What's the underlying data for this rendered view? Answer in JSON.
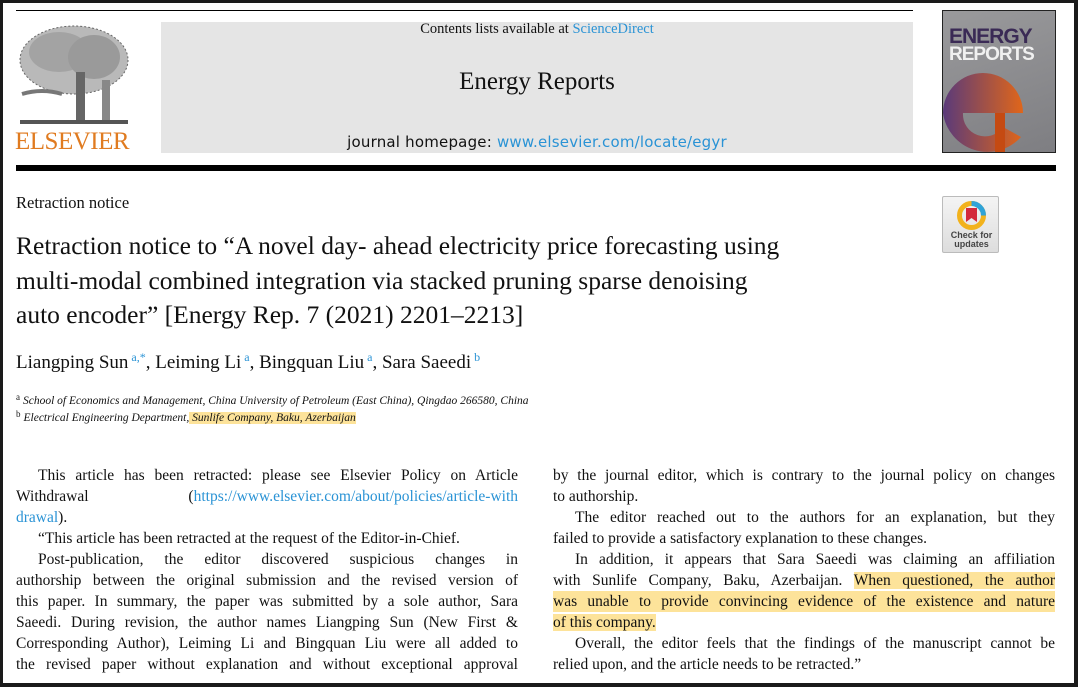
{
  "header": {
    "contents_prefix": "Contents lists available at ",
    "contents_link": "ScienceDirect",
    "journal_name": "Energy Reports",
    "homepage_prefix": "journal homepage: ",
    "homepage_link": "www.elsevier.com/locate/egyr",
    "publisher_logo": "ELSEVIER",
    "cover_title_1": "ENERGY",
    "cover_title_2": "REPORTS",
    "check_updates": "Check for updates"
  },
  "article": {
    "type": "Retraction notice",
    "title_lines": [
      "Retraction notice to “A novel day- ahead electricity price forecasting using",
      "multi-modal combined integration via stacked pruning sparse denoising",
      "auto encoder” [Energy Rep. 7 (2021) 2201–2213]"
    ],
    "authors": [
      {
        "name": "Liangping Sun",
        "sup": "a,*",
        "sep": ", "
      },
      {
        "name": "Leiming Li",
        "sup": "a",
        "sep": ", "
      },
      {
        "name": "Bingquan Liu",
        "sup": "a",
        "sep": ", "
      },
      {
        "name": "Sara Saeedi",
        "sup": "b",
        "sep": ""
      }
    ],
    "affiliations": [
      {
        "key": "a",
        "text": "School of Economics and Management, China University of Petroleum (East China), Qingdao 266580, China",
        "highlight": ""
      },
      {
        "key": "b",
        "text": "Electrical Engineering Department,",
        "highlight": " Sunlife Company, Baku, Azerbaijan "
      }
    ]
  },
  "body": {
    "left": [
      {
        "indent": true,
        "segs": [
          {
            "t": "This article has been retracted: please see Elsevier Policy on Article"
          }
        ]
      },
      {
        "segs": [
          {
            "t": "Withdrawal      ("
          },
          {
            "t": "https://www.elsevier.com/about/policies/article-with",
            "c": "link"
          }
        ]
      },
      {
        "last": true,
        "segs": [
          {
            "t": "drawal",
            "c": "link"
          },
          {
            "t": ")."
          }
        ]
      },
      {
        "indent": true,
        "last": true,
        "segs": [
          {
            "t": "“This article has been retracted at the request of the Editor-in-Chief."
          }
        ]
      },
      {
        "indent": true,
        "segs": [
          {
            "t": "Post-publication, the editor discovered suspicious changes in"
          }
        ]
      },
      {
        "segs": [
          {
            "t": "authorship between the original submission and the revised version of"
          }
        ]
      },
      {
        "segs": [
          {
            "t": "this paper. In summary, the paper was submitted by a sole author, Sara"
          }
        ]
      },
      {
        "segs": [
          {
            "t": "Saeedi. During revision, the author names Liangping Sun (New First &"
          }
        ]
      },
      {
        "segs": [
          {
            "t": "Corresponding Author), Leiming Li and Bingquan Liu were all added to"
          }
        ]
      },
      {
        "segs": [
          {
            "t": "the revised paper without explanation and without exceptional approval"
          }
        ]
      }
    ],
    "right": [
      {
        "segs": [
          {
            "t": "by the journal editor, which is contrary to the journal policy on changes"
          }
        ]
      },
      {
        "last": true,
        "segs": [
          {
            "t": "to authorship."
          }
        ]
      },
      {
        "indent": true,
        "segs": [
          {
            "t": "The editor reached out to the authors for an explanation, but they"
          }
        ]
      },
      {
        "last": true,
        "segs": [
          {
            "t": "failed to provide a satisfactory explanation to these changes."
          }
        ]
      },
      {
        "indent": true,
        "segs": [
          {
            "t": "In addition, it appears that Sara Saeedi was claiming an affiliation"
          }
        ]
      },
      {
        "segs": [
          {
            "t": "with Sunlife Company, Baku, Azerbaijan. "
          },
          {
            "t": "When questioned, the author",
            "c": "hl"
          }
        ]
      },
      {
        "hlline": true,
        "segs": [
          {
            "t": "was unable to provide convincing evidence of the existence and nature",
            "c": "hl"
          }
        ]
      },
      {
        "last": true,
        "segs": [
          {
            "t": "of this company. ",
            "c": "hl"
          }
        ]
      },
      {
        "indent": true,
        "segs": [
          {
            "t": "Overall, the editor feels that the findings of the manuscript cannot be"
          }
        ]
      },
      {
        "last": true,
        "segs": [
          {
            "t": "relied upon, and the article needs to be retracted.”"
          }
        ]
      }
    ]
  },
  "colors": {
    "link": "#2a93d5",
    "highlight": "#fde39a",
    "elsevier": "#e07b20"
  }
}
